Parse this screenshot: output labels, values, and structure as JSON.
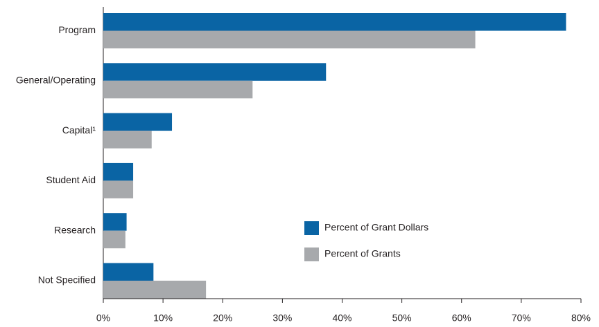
{
  "chart_data": {
    "type": "bar",
    "orientation": "horizontal",
    "categories": [
      "Program",
      "General/Operating",
      "Capital¹",
      "Student Aid",
      "Research",
      "Not Specified"
    ],
    "series": [
      {
        "name": "Percent of Grant Dollars",
        "color": "#0a64a4",
        "values": [
          77.5,
          37.3,
          11.5,
          5.0,
          3.9,
          8.4
        ]
      },
      {
        "name": "Percent of Grants",
        "color": "#a7a9ac",
        "values": [
          62.3,
          25.0,
          8.1,
          5.0,
          3.7,
          17.2
        ]
      }
    ],
    "xlim": [
      0,
      80
    ],
    "xticks": [
      {
        "value": 0,
        "label": "0%"
      },
      {
        "value": 10,
        "label": "10%"
      },
      {
        "value": 20,
        "label": "20%"
      },
      {
        "value": 30,
        "label": "30%"
      },
      {
        "value": 40,
        "label": "40%"
      },
      {
        "value": 50,
        "label": "50%"
      },
      {
        "value": 60,
        "label": "60%"
      },
      {
        "value": 70,
        "label": "70%"
      },
      {
        "value": 80,
        "label": "80%"
      }
    ],
    "grid": false
  }
}
